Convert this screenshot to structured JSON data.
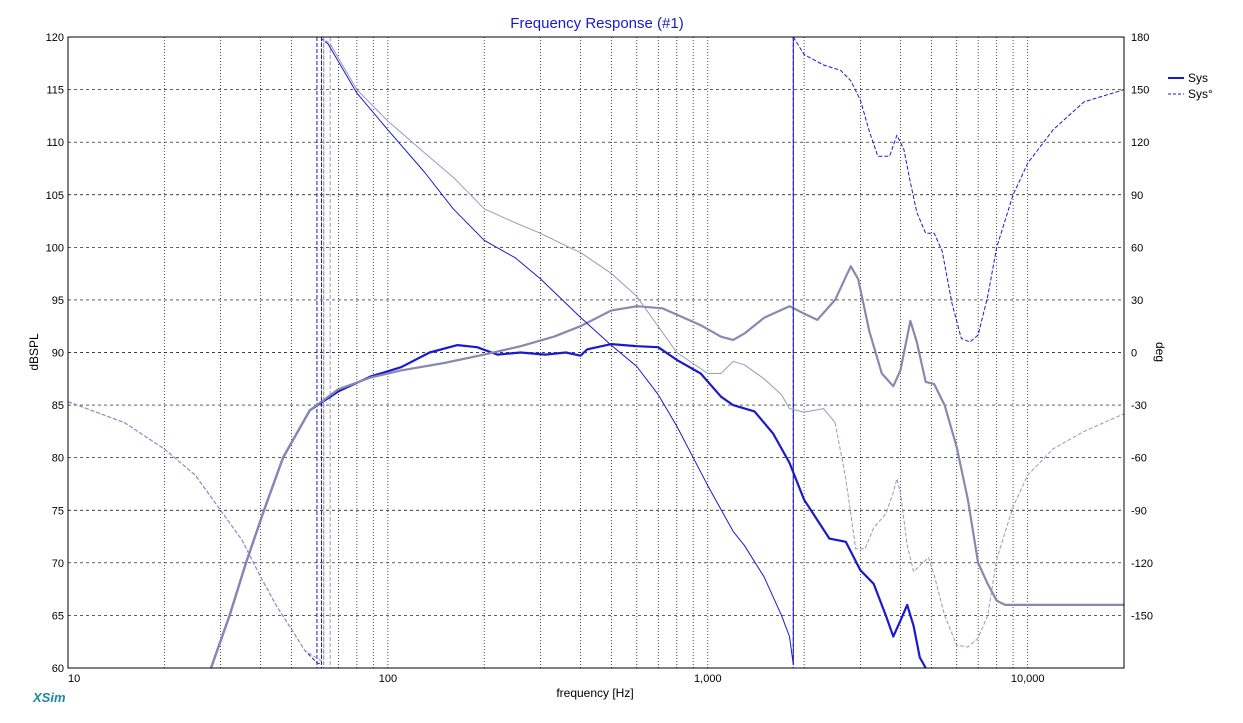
{
  "app": {
    "brand": "XSim"
  },
  "chart_data": {
    "type": "line",
    "title": "Frequency Response (#1)",
    "xlabel": "frequency [Hz]",
    "ylabel": "dBSPL",
    "y2label": "deg",
    "xscale": "log",
    "xlim": [
      10,
      20000
    ],
    "ylim": [
      60,
      120
    ],
    "y2lim": [
      -180,
      180
    ],
    "grid": true,
    "legend_position": "top-right",
    "x_tick_labels": [
      {
        "value": 10,
        "label": "10"
      },
      {
        "value": 100,
        "label": "100"
      },
      {
        "value": 1000,
        "label": "1,000"
      },
      {
        "value": 10000,
        "label": "10,000"
      }
    ],
    "y_ticks": [
      60,
      65,
      70,
      75,
      80,
      85,
      90,
      95,
      100,
      105,
      110,
      115,
      120
    ],
    "y2_ticks": [
      -150,
      -120,
      -90,
      -60,
      -30,
      0,
      30,
      60,
      90,
      120,
      150,
      180
    ],
    "legend": [
      {
        "label": "Sys",
        "style": "solid",
        "color": "#1a1acc"
      },
      {
        "label": "Sys°",
        "style": "dashed",
        "color": "#1a1acc"
      }
    ],
    "series": [
      {
        "name": "Sys",
        "axis": "left",
        "role": "magnitude",
        "color": "#1a1acc",
        "width": 2.2,
        "dash": "",
        "points": [
          [
            28,
            60
          ],
          [
            32,
            65
          ],
          [
            36,
            70
          ],
          [
            41,
            75
          ],
          [
            47,
            80
          ],
          [
            57,
            84.5
          ],
          [
            70,
            86.3
          ],
          [
            88,
            87.7
          ],
          [
            110,
            88.6
          ],
          [
            135,
            90
          ],
          [
            165,
            90.7
          ],
          [
            190,
            90.5
          ],
          [
            220,
            89.8
          ],
          [
            260,
            90
          ],
          [
            310,
            89.8
          ],
          [
            360,
            90
          ],
          [
            400,
            89.7
          ],
          [
            420,
            90.3
          ],
          [
            500,
            90.8
          ],
          [
            600,
            90.6
          ],
          [
            700,
            90.5
          ],
          [
            800,
            89.3
          ],
          [
            950,
            88
          ],
          [
            1100,
            85.8
          ],
          [
            1200,
            85
          ],
          [
            1400,
            84.4
          ],
          [
            1600,
            82.3
          ],
          [
            1800,
            79.5
          ],
          [
            2000,
            76
          ],
          [
            2400,
            72.3
          ],
          [
            2700,
            72
          ],
          [
            3000,
            69.3
          ],
          [
            3300,
            68
          ],
          [
            3600,
            65
          ],
          [
            3800,
            63
          ],
          [
            4000,
            64.5
          ],
          [
            4200,
            66
          ],
          [
            4400,
            64
          ],
          [
            4600,
            61
          ],
          [
            4800,
            60
          ]
        ]
      },
      {
        "name": "",
        "axis": "left",
        "role": "magnitude",
        "color": "#8888b0",
        "width": 2.2,
        "dash": "",
        "points": [
          [
            28,
            60
          ],
          [
            32,
            65
          ],
          [
            36,
            70
          ],
          [
            41,
            75
          ],
          [
            47,
            80
          ],
          [
            57,
            84.5
          ],
          [
            70,
            86.5
          ],
          [
            88,
            87.6
          ],
          [
            110,
            88.3
          ],
          [
            150,
            89
          ],
          [
            200,
            89.8
          ],
          [
            260,
            90.6
          ],
          [
            330,
            91.5
          ],
          [
            400,
            92.5
          ],
          [
            500,
            94
          ],
          [
            600,
            94.4
          ],
          [
            720,
            94.2
          ],
          [
            800,
            93.6
          ],
          [
            950,
            92.6
          ],
          [
            1100,
            91.5
          ],
          [
            1200,
            91.2
          ],
          [
            1300,
            91.8
          ],
          [
            1500,
            93.3
          ],
          [
            1800,
            94.4
          ],
          [
            2000,
            93.7
          ],
          [
            2200,
            93.1
          ],
          [
            2500,
            95
          ],
          [
            2700,
            97.2
          ],
          [
            2800,
            98.2
          ],
          [
            2950,
            97
          ],
          [
            3200,
            92
          ],
          [
            3500,
            88
          ],
          [
            3800,
            86.8
          ],
          [
            4000,
            88.3
          ],
          [
            4300,
            93
          ],
          [
            4500,
            91
          ],
          [
            4800,
            87.2
          ],
          [
            5100,
            87
          ],
          [
            5500,
            85
          ],
          [
            6000,
            81
          ],
          [
            6500,
            76
          ],
          [
            7000,
            70
          ],
          [
            7500,
            68
          ],
          [
            8000,
            66.4
          ],
          [
            8500,
            66
          ],
          [
            10000,
            66
          ],
          [
            20000,
            66
          ]
        ]
      },
      {
        "name": "Sys°",
        "axis": "right",
        "role": "phase",
        "color": "#1a1acc",
        "width": 1,
        "dash": "4,2",
        "points": [
          [
            10,
            -28
          ],
          [
            15,
            -40
          ],
          [
            20,
            -55
          ],
          [
            25,
            -70
          ],
          [
            30,
            -90
          ],
          [
            35,
            -107
          ],
          [
            40,
            -128
          ],
          [
            45,
            -145
          ],
          [
            50,
            -158
          ],
          [
            55,
            -170
          ],
          [
            60,
            -177
          ],
          [
            62,
            -178
          ],
          [
            62,
            179
          ],
          [
            65,
            176
          ]
        ]
      },
      {
        "name": "",
        "axis": "right",
        "role": "phase",
        "color": "#1a1acc",
        "width": 1,
        "dash": "",
        "points": [
          [
            65,
            176
          ],
          [
            80,
            148
          ],
          [
            100,
            127
          ],
          [
            130,
            103
          ],
          [
            160,
            82
          ],
          [
            200,
            64
          ],
          [
            250,
            54
          ],
          [
            300,
            42
          ],
          [
            400,
            20
          ],
          [
            500,
            4
          ],
          [
            600,
            -8
          ],
          [
            700,
            -24
          ],
          [
            800,
            -42
          ],
          [
            1000,
            -76
          ],
          [
            1200,
            -102
          ],
          [
            1300,
            -110
          ],
          [
            1500,
            -128
          ],
          [
            1700,
            -150
          ],
          [
            1800,
            -162
          ],
          [
            1850,
            -178
          ],
          [
            1850,
            180
          ]
        ]
      },
      {
        "name": "",
        "axis": "right",
        "role": "phase",
        "color": "#1a1acc",
        "width": 1,
        "dash": "4,2",
        "points": [
          [
            1850,
            180
          ],
          [
            2000,
            170
          ],
          [
            2300,
            164
          ],
          [
            2600,
            161
          ],
          [
            2800,
            155
          ],
          [
            3000,
            144
          ],
          [
            3200,
            126
          ],
          [
            3400,
            112
          ],
          [
            3700,
            112
          ],
          [
            3900,
            124
          ],
          [
            4100,
            116
          ],
          [
            4300,
            97
          ],
          [
            4500,
            80
          ],
          [
            4800,
            68
          ],
          [
            5100,
            68
          ],
          [
            5400,
            58
          ],
          [
            5800,
            28
          ],
          [
            6200,
            8
          ],
          [
            6600,
            6
          ],
          [
            7000,
            10
          ],
          [
            7500,
            32
          ],
          [
            8000,
            60
          ],
          [
            9000,
            90
          ],
          [
            10000,
            108
          ],
          [
            12000,
            127
          ],
          [
            15000,
            143
          ],
          [
            20000,
            150
          ]
        ]
      },
      {
        "name": "",
        "axis": "right",
        "role": "phase",
        "color": "#9898c0",
        "width": 1,
        "dash": "4,2",
        "points": [
          [
            10,
            -28
          ],
          [
            15,
            -40
          ],
          [
            20,
            -55
          ],
          [
            25,
            -70
          ],
          [
            30,
            -90
          ],
          [
            35,
            -107
          ],
          [
            40,
            -128
          ],
          [
            45,
            -145
          ],
          [
            50,
            -158
          ],
          [
            55,
            -170
          ],
          [
            62,
            -176
          ],
          [
            63,
            -178
          ],
          [
            63,
            179
          ],
          [
            66,
            176
          ]
        ]
      },
      {
        "name": "",
        "axis": "right",
        "role": "phase",
        "color": "#9898c0",
        "width": 1,
        "dash": "",
        "points": [
          [
            66,
            176
          ],
          [
            80,
            150
          ],
          [
            100,
            132
          ],
          [
            130,
            114
          ],
          [
            160,
            100
          ],
          [
            200,
            82
          ],
          [
            250,
            74
          ],
          [
            300,
            68
          ],
          [
            350,
            62
          ],
          [
            400,
            57
          ],
          [
            500,
            45
          ],
          [
            600,
            32
          ],
          [
            800,
            0
          ],
          [
            1000,
            -12
          ],
          [
            1100,
            -12
          ],
          [
            1200,
            -5
          ],
          [
            1300,
            -7
          ],
          [
            1500,
            -15
          ],
          [
            1700,
            -24
          ],
          [
            1800,
            -32
          ],
          [
            2000,
            -34
          ],
          [
            2300,
            -32
          ],
          [
            2500,
            -40
          ]
        ]
      },
      {
        "name": "",
        "axis": "right",
        "role": "phase",
        "color": "#9898c0",
        "width": 1,
        "dash": "4,2",
        "points": [
          [
            2500,
            -40
          ],
          [
            2700,
            -72
          ],
          [
            2900,
            -112
          ],
          [
            3100,
            -112
          ],
          [
            3300,
            -100
          ],
          [
            3600,
            -92
          ],
          [
            3800,
            -80
          ],
          [
            3900,
            -72
          ],
          [
            4000,
            -80
          ],
          [
            4200,
            -110
          ],
          [
            4400,
            -125
          ],
          [
            4700,
            -120
          ],
          [
            4900,
            -117
          ],
          [
            5100,
            -127
          ],
          [
            5500,
            -150
          ],
          [
            6000,
            -167
          ],
          [
            6500,
            -168
          ],
          [
            7000,
            -163
          ],
          [
            7500,
            -150
          ],
          [
            8000,
            -118
          ],
          [
            9000,
            -88
          ],
          [
            10000,
            -70
          ],
          [
            12000,
            -55
          ],
          [
            15000,
            -45
          ],
          [
            20000,
            -35
          ]
        ]
      }
    ],
    "vertical_markers": [
      {
        "x": 60,
        "color": "#1a1acc",
        "dash": "4,2"
      },
      {
        "x": 62,
        "color": "#1a1acc",
        "dash": "4,2"
      },
      {
        "x": 63,
        "color": "#9898c0",
        "dash": "4,2"
      },
      {
        "x": 66,
        "color": "#9898c0",
        "dash": "4,2"
      },
      {
        "x": 1850,
        "color": "#1a1acc",
        "dash": "4,2"
      }
    ]
  }
}
